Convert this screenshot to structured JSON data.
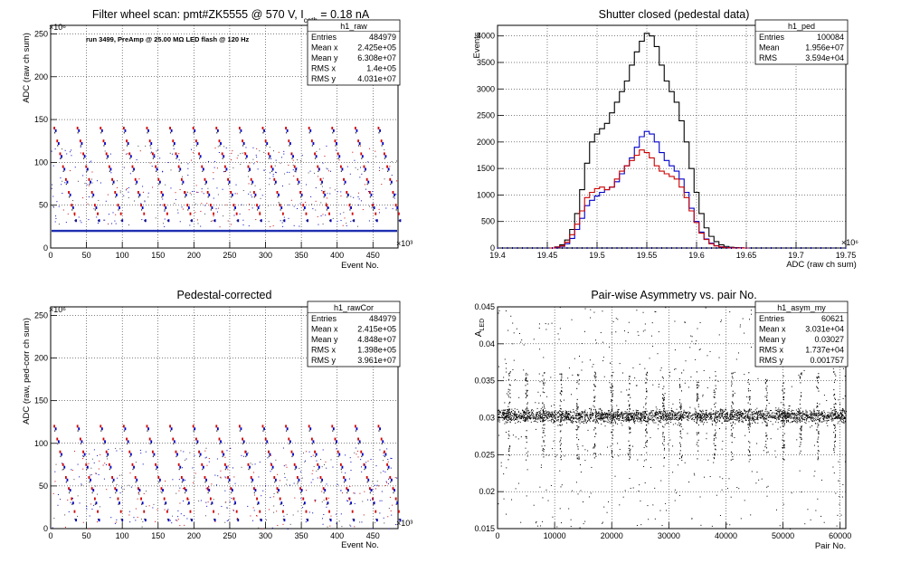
{
  "chart_data": [
    {
      "type": "scatter",
      "title": "Filter wheel scan: pmt#ZK5555 @   570 V, I",
      "title_sub": "cath",
      "title_tail": " = 0.18 nA",
      "annotation": "run 3499, PreAmp @ 25.00 MΩ LED flash @  120 Hz",
      "xlabel": "Event No.",
      "ylabel": "ADC (raw ch sum)",
      "x_exponent": "×10³",
      "y_exponent": "×10⁶",
      "xlim": [
        0,
        485
      ],
      "ylim": [
        0,
        260
      ],
      "x_ticks": [
        "0",
        "50",
        "100",
        "150",
        "200",
        "250",
        "300",
        "350",
        "400",
        "450"
      ],
      "y_ticks": [
        "0",
        "50",
        "100",
        "150",
        "200",
        "250"
      ],
      "grid": true,
      "levels_red": [
        140,
        125,
        110,
        95,
        80,
        65,
        50,
        40
      ],
      "levels_blue": [
        137,
        122,
        107,
        92,
        77,
        62,
        47,
        32
      ],
      "baseline": 20,
      "blocks": 15,
      "stats": {
        "name": "h1_raw",
        "rows": [
          {
            "label": "Entries",
            "value": "484979"
          },
          {
            "label": "Mean x",
            "value": "2.425e+05"
          },
          {
            "label": "Mean y",
            "value": "6.308e+07"
          },
          {
            "label": "RMS x",
            "value": "1.4e+05"
          },
          {
            "label": "RMS y",
            "value": "4.031e+07"
          }
        ]
      }
    },
    {
      "type": "line",
      "title": "Shutter closed (pedestal data)",
      "xlabel": "ADC (raw ch sum)",
      "ylabel": "Events",
      "x_exponent": "×10⁶",
      "xlim": [
        19.4,
        19.75
      ],
      "ylim": [
        0,
        4200
      ],
      "x_ticks": [
        "19.4",
        "19.45",
        "19.5",
        "19.55",
        "19.6",
        "19.65",
        "19.7",
        "19.75"
      ],
      "y_ticks": [
        "0",
        "500",
        "1000",
        "1500",
        "2000",
        "2500",
        "3000",
        "3500",
        "4000"
      ],
      "grid": true,
      "series": [
        {
          "color": "#000000",
          "x": [
            19.455,
            19.46,
            19.465,
            19.47,
            19.475,
            19.48,
            19.485,
            19.49,
            19.495,
            19.5,
            19.505,
            19.51,
            19.515,
            19.52,
            19.525,
            19.53,
            19.535,
            19.54,
            19.545,
            19.55,
            19.555,
            19.56,
            19.565,
            19.57,
            19.575,
            19.58,
            19.585,
            19.59,
            19.595,
            19.6,
            19.605,
            19.61,
            19.615,
            19.62,
            19.625,
            19.63,
            19.635,
            19.64,
            19.645,
            19.65
          ],
          "values": [
            0,
            20,
            60,
            150,
            350,
            650,
            1100,
            1600,
            2000,
            2150,
            2250,
            2350,
            2550,
            2750,
            2950,
            3150,
            3450,
            3700,
            3900,
            4050,
            4000,
            3800,
            3450,
            3150,
            2950,
            2750,
            2400,
            2000,
            1500,
            1050,
            650,
            380,
            220,
            120,
            60,
            30,
            15,
            8,
            4,
            0
          ]
        },
        {
          "color": "#0000cc",
          "x": [
            19.455,
            19.46,
            19.465,
            19.47,
            19.475,
            19.48,
            19.485,
            19.49,
            19.495,
            19.5,
            19.505,
            19.51,
            19.515,
            19.52,
            19.525,
            19.53,
            19.535,
            19.54,
            19.545,
            19.55,
            19.555,
            19.56,
            19.565,
            19.57,
            19.575,
            19.58,
            19.585,
            19.59,
            19.595,
            19.6,
            19.605,
            19.61,
            19.615,
            19.62,
            19.625,
            19.63,
            19.635,
            19.64,
            19.645,
            19.65
          ],
          "values": [
            0,
            10,
            30,
            80,
            180,
            350,
            560,
            800,
            900,
            980,
            1050,
            1100,
            1150,
            1250,
            1400,
            1550,
            1700,
            1900,
            2100,
            2200,
            2150,
            2000,
            1800,
            1650,
            1550,
            1450,
            1300,
            1050,
            750,
            500,
            300,
            170,
            90,
            45,
            20,
            10,
            5,
            2,
            1,
            0
          ]
        },
        {
          "color": "#cc0000",
          "x": [
            19.455,
            19.46,
            19.465,
            19.47,
            19.475,
            19.48,
            19.485,
            19.49,
            19.495,
            19.5,
            19.505,
            19.51,
            19.515,
            19.52,
            19.525,
            19.53,
            19.535,
            19.54,
            19.545,
            19.55,
            19.555,
            19.56,
            19.565,
            19.57,
            19.575,
            19.58,
            19.585,
            19.59,
            19.595,
            19.6,
            19.605,
            19.61,
            19.615,
            19.62,
            19.625,
            19.63,
            19.635,
            19.64,
            19.645,
            19.65
          ],
          "values": [
            0,
            15,
            40,
            110,
            250,
            450,
            700,
            950,
            1050,
            1120,
            1150,
            1100,
            1150,
            1300,
            1450,
            1550,
            1650,
            1750,
            1850,
            1800,
            1700,
            1550,
            1450,
            1400,
            1350,
            1300,
            1150,
            950,
            700,
            480,
            280,
            160,
            80,
            40,
            20,
            8,
            4,
            2,
            1,
            0
          ]
        }
      ],
      "stats": {
        "name": "h1_ped",
        "rows": [
          {
            "label": "Entries",
            "value": "100084"
          },
          {
            "label": "Mean",
            "value": "1.956e+07"
          },
          {
            "label": "RMS",
            "value": "3.594e+04"
          }
        ]
      }
    },
    {
      "type": "scatter",
      "title": "Pedestal-corrected",
      "xlabel": "Event No.",
      "ylabel": "ADC (raw, ped-corr ch sum)",
      "x_exponent": "×10³",
      "y_exponent": "×10⁶",
      "xlim": [
        0,
        485
      ],
      "ylim": [
        0,
        260
      ],
      "x_ticks": [
        "0",
        "50",
        "100",
        "150",
        "200",
        "250",
        "300",
        "350",
        "400",
        "450"
      ],
      "y_ticks": [
        "0",
        "50",
        "100",
        "150",
        "200",
        "250"
      ],
      "grid": true,
      "levels_red": [
        120,
        105,
        90,
        75,
        60,
        47,
        35,
        20
      ],
      "levels_blue": [
        117,
        102,
        87,
        72,
        57,
        45,
        30,
        10
      ],
      "baseline": 0,
      "blocks": 15,
      "stats": {
        "name": "h1_rawCor",
        "rows": [
          {
            "label": "Entries",
            "value": "484979"
          },
          {
            "label": "Mean x",
            "value": "2.415e+05"
          },
          {
            "label": "Mean y",
            "value": "4.848e+07"
          },
          {
            "label": "RMS x",
            "value": "1.398e+05"
          },
          {
            "label": "RMS y",
            "value": "3.961e+07"
          }
        ]
      }
    },
    {
      "type": "scatter",
      "title": "Pair-wise Asymmetry vs. pair No.",
      "xlabel": "Pair No.",
      "ylabel": "A",
      "ylabel_sub": "LED",
      "xlim": [
        0,
        61000
      ],
      "ylim": [
        0.015,
        0.045
      ],
      "x_ticks": [
        "0",
        "10000",
        "20000",
        "30000",
        "40000",
        "50000",
        "60000"
      ],
      "y_ticks": [
        "0.015",
        "0.02",
        "0.025",
        "0.03",
        "0.035",
        "0.04",
        "0.045"
      ],
      "grid": true,
      "band_center": 0.0303,
      "band_width": 0.0008,
      "spike_every": 3000,
      "stats": {
        "name": "h1_asym_my",
        "rows": [
          {
            "label": "Entries",
            "value": "60621"
          },
          {
            "label": "Mean x",
            "value": "3.031e+04"
          },
          {
            "label": "Mean y",
            "value": "0.03027"
          },
          {
            "label": "RMS x",
            "value": "1.737e+04"
          },
          {
            "label": "RMS y",
            "value": "0.001757"
          }
        ]
      }
    }
  ]
}
